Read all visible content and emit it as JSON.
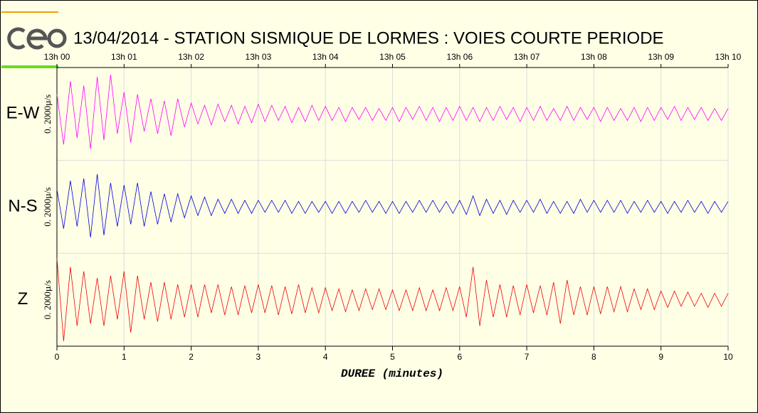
{
  "chart_data": {
    "type": "seismogram",
    "title": "13/04/2014  -  STATION SISMIQUE DE LORMES : VOIES COURTE PERIODE",
    "xlabel": "DUREE (minutes)",
    "xlim": [
      0,
      10
    ],
    "xticks": [
      0,
      1,
      2,
      3,
      4,
      5,
      6,
      7,
      8,
      9,
      10
    ],
    "x2ticks": [
      {
        "value": 0,
        "label": "13h 00"
      },
      {
        "value": 1,
        "label": "13h 01"
      },
      {
        "value": 2,
        "label": "13h 02"
      },
      {
        "value": 3,
        "label": "13h 03"
      },
      {
        "value": 4,
        "label": "13h 04"
      },
      {
        "value": 5,
        "label": "13h 05"
      },
      {
        "value": 6,
        "label": "13h 06"
      },
      {
        "value": 7,
        "label": "13h 07"
      },
      {
        "value": 8,
        "label": "13h 08"
      },
      {
        "value": 9,
        "label": "13h 09"
      },
      {
        "value": 10,
        "label": "13h 10"
      }
    ],
    "ylim": [
      -2000,
      2000
    ],
    "grid": true,
    "x": [
      0,
      0.1,
      0.2,
      0.3,
      0.4,
      0.5,
      0.6,
      0.7,
      0.8,
      0.9,
      1,
      1.1,
      1.2,
      1.3,
      1.4,
      1.5,
      1.6,
      1.7,
      1.8,
      1.9,
      2,
      2.1,
      2.2,
      2.3,
      2.4,
      2.5,
      2.6,
      2.7,
      2.8,
      2.9,
      3,
      3.1,
      3.2,
      3.3,
      3.4,
      3.5,
      3.6,
      3.7,
      3.8,
      3.9,
      4,
      4.1,
      4.2,
      4.3,
      4.4,
      4.5,
      4.6,
      4.7,
      4.8,
      4.9,
      5,
      5.1,
      5.2,
      5.3,
      5.4,
      5.5,
      5.6,
      5.7,
      5.8,
      5.9,
      6,
      6.1,
      6.2,
      6.3,
      6.4,
      6.5,
      6.6,
      6.7,
      6.8,
      6.9,
      7,
      7.1,
      7.2,
      7.3,
      7.4,
      7.5,
      7.6,
      7.7,
      7.8,
      7.9,
      8,
      8.1,
      8.2,
      8.3,
      8.4,
      8.5,
      8.6,
      8.7,
      8.8,
      8.9,
      9,
      9.1,
      9.2,
      9.3,
      9.4,
      9.5,
      9.6,
      9.7,
      9.8,
      9.9,
      10
    ],
    "series": [
      {
        "name": "E-W",
        "scale_label": "0. 2000µ/s",
        "color": "#ff00ff",
        "values": [
          900,
          -1400,
          1500,
          -1100,
          1300,
          -1600,
          1700,
          -1200,
          1800,
          -900,
          1000,
          -1300,
          900,
          -800,
          700,
          -900,
          600,
          -1000,
          700,
          -600,
          500,
          -450,
          400,
          -500,
          450,
          -350,
          400,
          -450,
          350,
          -400,
          450,
          -350,
          400,
          -300,
          350,
          -400,
          300,
          -350,
          400,
          -300,
          350,
          -300,
          300,
          -350,
          300,
          -250,
          300,
          -300,
          250,
          -300,
          300,
          -350,
          300,
          -250,
          350,
          -300,
          300,
          -350,
          300,
          -300,
          350,
          -300,
          300,
          -350,
          300,
          -300,
          350,
          -250,
          300,
          -350,
          300,
          -300,
          350,
          -300,
          250,
          -300,
          350,
          -300,
          300,
          -250,
          300,
          -350,
          300,
          -300,
          250,
          -300,
          300,
          -350,
          300,
          -300,
          300,
          -250,
          350,
          -300,
          300,
          -250,
          300,
          -300,
          250,
          -300,
          250
        ]
      },
      {
        "name": "N-S",
        "scale_label": "0. 2000µ/s",
        "color": "#0000dd",
        "values": [
          800,
          -1000,
          1200,
          -900,
          1300,
          -1400,
          1500,
          -1300,
          1100,
          -900,
          1000,
          -800,
          1100,
          -900,
          700,
          -800,
          600,
          -700,
          600,
          -500,
          500,
          -400,
          450,
          -400,
          350,
          -300,
          350,
          -300,
          300,
          -300,
          300,
          -250,
          300,
          -250,
          300,
          -300,
          250,
          -300,
          250,
          -250,
          250,
          -300,
          250,
          -300,
          250,
          -250,
          300,
          -250,
          250,
          -300,
          250,
          -300,
          250,
          -250,
          300,
          -250,
          300,
          -250,
          250,
          -300,
          300,
          -350,
          500,
          -400,
          350,
          -300,
          300,
          -350,
          300,
          -250,
          300,
          -250,
          350,
          -300,
          250,
          -300,
          250,
          -300,
          350,
          -250,
          300,
          -250,
          300,
          -250,
          300,
          -300,
          250,
          -250,
          300,
          -250,
          250,
          -300,
          250,
          -250,
          300,
          -250,
          250,
          -300,
          250,
          -250,
          250
        ]
      },
      {
        "name": "Z",
        "scale_label": "0. 2000µ/s",
        "color": "#ee0000",
        "values": [
          1900,
          -1900,
          1500,
          -1200,
          1300,
          -1100,
          1000,
          -1200,
          1100,
          -900,
          1300,
          -1500,
          1100,
          -900,
          800,
          -1000,
          800,
          -900,
          700,
          -800,
          700,
          -800,
          700,
          -600,
          700,
          -700,
          600,
          -700,
          650,
          -600,
          700,
          -600,
          650,
          -700,
          600,
          -650,
          700,
          -600,
          550,
          -600,
          550,
          -500,
          500,
          -550,
          450,
          -500,
          500,
          -450,
          500,
          -450,
          450,
          -500,
          450,
          -500,
          550,
          -500,
          450,
          -500,
          550,
          -500,
          600,
          -800,
          1500,
          -1200,
          900,
          -800,
          700,
          -800,
          650,
          -700,
          700,
          -600,
          650,
          -700,
          800,
          -1100,
          900,
          -700,
          600,
          -700,
          600,
          -650,
          600,
          -550,
          600,
          -550,
          500,
          -450,
          500,
          -450,
          400,
          -350,
          400,
          -300,
          350,
          -300,
          300,
          -350,
          300,
          -300,
          300
        ]
      }
    ]
  }
}
